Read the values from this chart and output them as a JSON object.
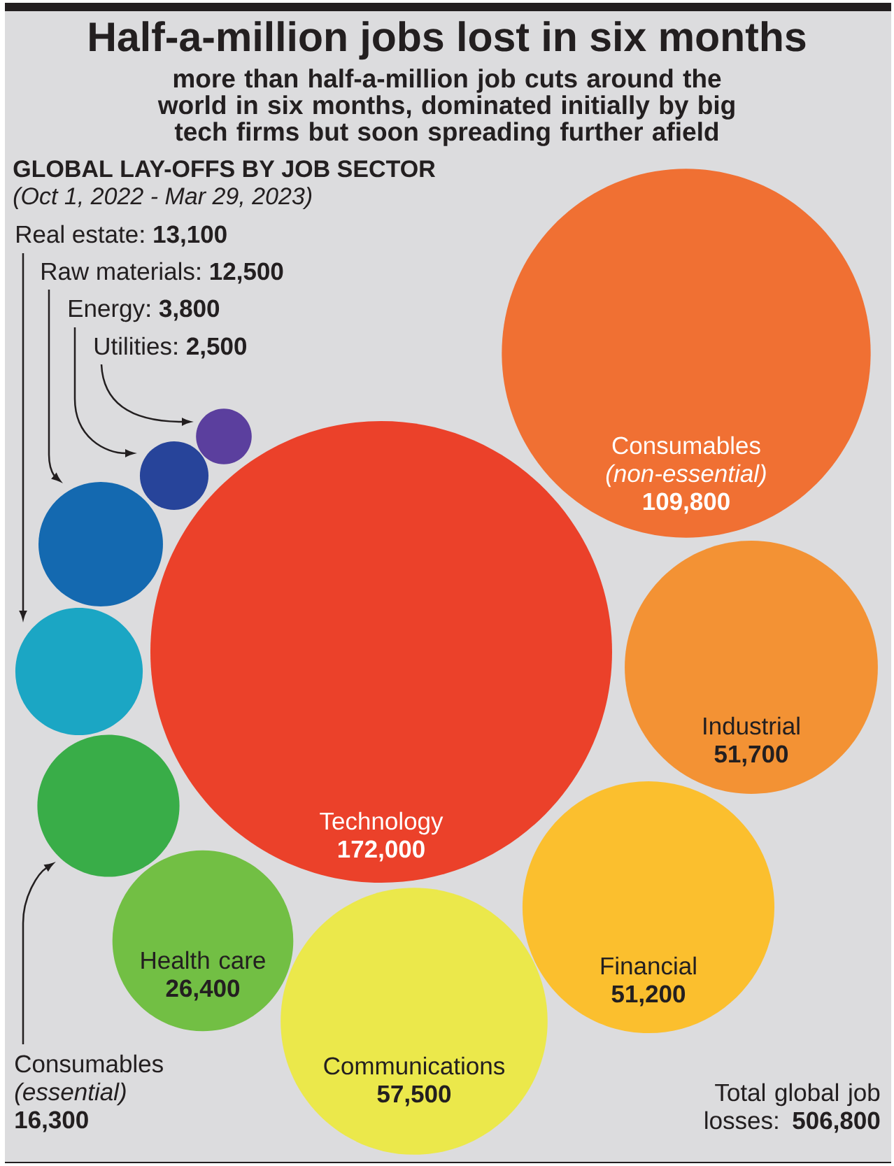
{
  "chart_data": {
    "type": "other",
    "title": "Half-a-million jobs lost in six months",
    "subtitle": "more than half-a-million job cuts around the world in six months, dominated initially by big tech firms but soon spreading further afield",
    "annotations": [
      "GLOBAL LAY-OFFS BY JOB SECTOR",
      "(Oct 1, 2022 - Mar 29, 2023)",
      "Total global job losses: **506,800**"
    ],
    "categories": [
      "Real estate",
      "Raw materials",
      "Energy",
      "Utilities",
      "Consumables *(non-essential)*",
      "Technology",
      "Industrial",
      "Financial",
      "Communications",
      "Health care",
      "Consumables *(essential)*"
    ],
    "values": [
      13100,
      12500,
      3800,
      2500,
      109800,
      172000,
      51700,
      51200,
      57500,
      26400,
      16300
    ],
    "value_labels": [
      "13,100",
      "12,500",
      "3,800",
      "2,500",
      "109,800",
      "172,000",
      "51,700",
      "51,200",
      "57,500",
      "26,400",
      "16,300"
    ],
    "colors": [
      "#1ba6c4",
      "#1469b0",
      "#27449a",
      "#5b3f9e",
      "#f07033",
      "#eb412a",
      "#f39234",
      "#fbbf2e",
      "#ebe84b",
      "#72bf44",
      "#39ad48"
    ]
  }
}
